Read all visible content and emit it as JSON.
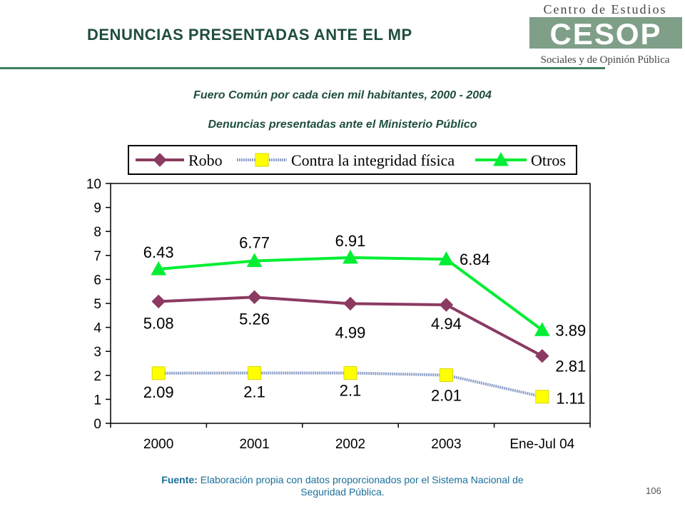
{
  "header": {
    "title": "DENUNCIAS PRESENTADAS ANTE EL MP",
    "logo_line1": "Centro de Estudios",
    "logo_mark": "CESOP",
    "logo_line2": "Sociales y de Opinión Pública"
  },
  "subtitles": {
    "line1": "Fuero Común por cada cien mil habitantes,  2000 - 2004",
    "line2": "Denuncias presentadas ante el Ministerio Público"
  },
  "footer": {
    "source_label": "Fuente:",
    "source_text": " Elaboración propia con datos proporcionados por el Sistema Nacional de Seguridad Pública.",
    "page_number": "106"
  },
  "colors": {
    "robo": "#8b3a62",
    "integridad": "#ffff00",
    "otros": "#00ee33",
    "title": "#1f4e3d",
    "source": "#1a6f9a"
  },
  "chart_data": {
    "type": "line",
    "categories": [
      "2000",
      "2001",
      "2002",
      "2003",
      "Ene-Jul 04"
    ],
    "ylim": [
      0,
      10
    ],
    "yticks": [
      0,
      1,
      2,
      3,
      4,
      5,
      6,
      7,
      8,
      9,
      10
    ],
    "legend_position": "top",
    "series": [
      {
        "name": "Robo",
        "values": [
          5.08,
          5.26,
          4.99,
          4.94,
          2.81
        ],
        "labels": [
          "5.08",
          "5.26",
          "4.99",
          "4.94",
          "2.81"
        ],
        "marker": "diamond"
      },
      {
        "name": "Contra la integridad física",
        "values": [
          2.09,
          2.1,
          2.1,
          2.01,
          1.11
        ],
        "labels": [
          "2.09",
          "2.1",
          "2.1",
          "2.01",
          "1.11"
        ],
        "marker": "square"
      },
      {
        "name": "Otros",
        "values": [
          6.43,
          6.77,
          6.91,
          6.84,
          3.89
        ],
        "labels": [
          "6.43",
          "6.77",
          "6.91",
          "6.84",
          "3.89"
        ],
        "marker": "triangle"
      }
    ]
  }
}
